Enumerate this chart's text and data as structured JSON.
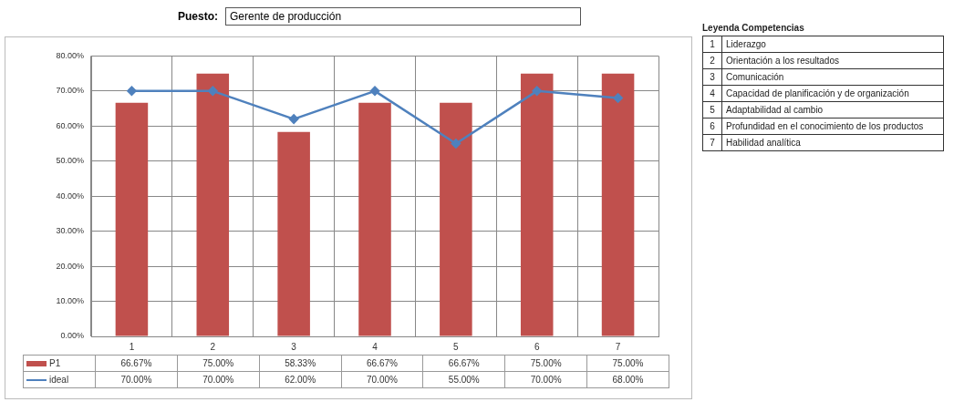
{
  "chart_data": {
    "type": "bar",
    "title": "Puesto:",
    "subtitle": "Gerente de producción",
    "categories": [
      "1",
      "2",
      "3",
      "4",
      "5",
      "6",
      "7"
    ],
    "series": [
      {
        "name": "P1",
        "color": "#c0504d",
        "values": [
          66.67,
          75.0,
          58.33,
          66.67,
          66.67,
          75.0,
          75.0
        ],
        "value_labels": [
          "66.67%",
          "75.00%",
          "58.33%",
          "66.67%",
          "66.67%",
          "75.00%",
          "75.00%"
        ]
      },
      {
        "name": "ideal",
        "type": "line",
        "color": "#4f81bd",
        "marker": "diamond",
        "values": [
          70,
          70,
          62,
          70,
          55,
          70,
          68
        ],
        "value_labels": [
          "70.00%",
          "70.00%",
          "62.00%",
          "70.00%",
          "55.00%",
          "70.00%",
          "68.00%"
        ]
      }
    ],
    "ylim": [
      0,
      80
    ],
    "yticks": [
      {
        "value": 0,
        "label": "0.00%"
      },
      {
        "value": 10,
        "label": "10.00%"
      },
      {
        "value": 20,
        "label": "20.00%"
      },
      {
        "value": 30,
        "label": "30.00%"
      },
      {
        "value": 40,
        "label": "40.00%"
      },
      {
        "value": 50,
        "label": "50.00%"
      },
      {
        "value": 60,
        "label": "60.00%"
      },
      {
        "value": 70,
        "label": "70.00%"
      },
      {
        "value": 80,
        "label": "80.00%"
      }
    ],
    "grid": true,
    "legend": "bottom",
    "annotations": [
      "Leyenda Competencias",
      "1 Liderazgo",
      "2 Orientación a los resultados",
      "3 Comunicación",
      "4 Capacidad de planificación y de organización",
      "5 Adaptabilidad al cambio",
      "6 Profundidad en el conocimiento de los productos",
      "7 Habilidad analítica"
    ]
  }
}
